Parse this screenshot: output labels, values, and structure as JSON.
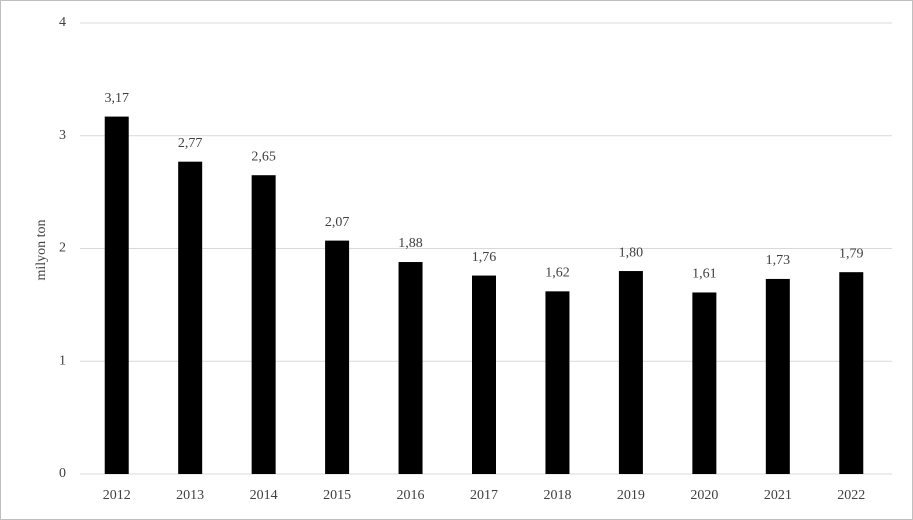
{
  "chart_data": {
    "type": "bar",
    "y_label": "milyon ton",
    "categories": [
      "2012",
      "2013",
      "2014",
      "2015",
      "2016",
      "2017",
      "2018",
      "2019",
      "2020",
      "2021",
      "2022"
    ],
    "values": [
      3.17,
      2.77,
      2.65,
      2.07,
      1.88,
      1.76,
      1.62,
      1.8,
      1.61,
      1.73,
      1.79
    ],
    "value_labels": [
      "3,17",
      "2,77",
      "2,65",
      "2,07",
      "1,88",
      "1,76",
      "1,62",
      "1,80",
      "1,61",
      "1,73",
      "1,79"
    ],
    "color": "#000000",
    "ylim": [
      0,
      4
    ],
    "yticks": [
      0,
      1,
      2,
      3,
      4
    ],
    "grid": true
  }
}
